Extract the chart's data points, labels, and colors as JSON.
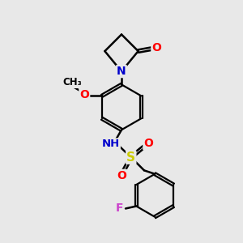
{
  "background_color": "#e8e8e8",
  "bond_color": "#000000",
  "atom_colors": {
    "N": "#0000cc",
    "O": "#ff0000",
    "S": "#cccc00",
    "F": "#cc44cc",
    "C": "#000000",
    "H": "#008080"
  }
}
